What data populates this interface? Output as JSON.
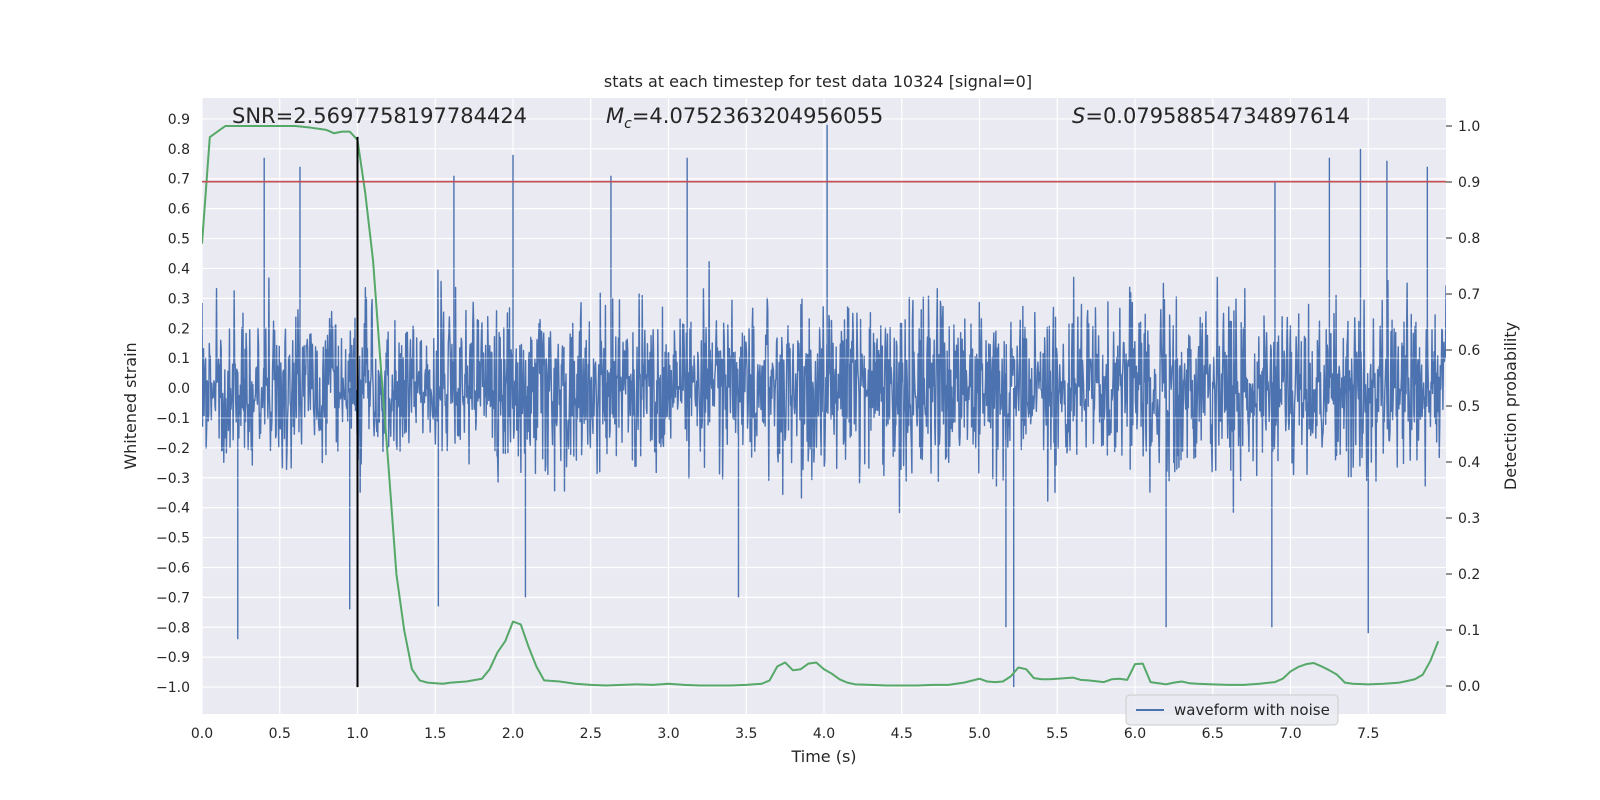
{
  "chart_data": {
    "type": "line",
    "title": "stats at each timestep for test data 10324 [signal=0]",
    "xlabel": "Time (s)",
    "ylabel": "Whitened strain",
    "y2label": "Detection probability",
    "xlim": [
      0.0,
      8.0
    ],
    "ylim": [
      -1.09,
      0.97
    ],
    "y2lim": [
      -0.05,
      1.05
    ],
    "xticks": [
      "0.0",
      "0.5",
      "1.0",
      "1.5",
      "2.0",
      "2.5",
      "3.0",
      "3.5",
      "4.0",
      "4.5",
      "5.0",
      "5.5",
      "6.0",
      "6.5",
      "7.0",
      "7.5"
    ],
    "yticks": [
      "0.9",
      "0.8",
      "0.7",
      "0.6",
      "0.5",
      "0.4",
      "0.3",
      "0.2",
      "0.1",
      "0.0",
      "−0.1",
      "−0.2",
      "−0.3",
      "−0.4",
      "−0.5",
      "−0.6",
      "−0.7",
      "−0.8",
      "−0.9",
      "−1.0"
    ],
    "y2ticks": [
      "1.0",
      "0.9",
      "0.8",
      "0.7",
      "0.6",
      "0.5",
      "0.4",
      "0.3",
      "0.2",
      "0.1",
      "0.0"
    ],
    "grid": true,
    "legend_position": "lower-right",
    "colors": {
      "background": "#eaeaf2",
      "grid": "#ffffff",
      "waveform": "#4c72b0",
      "probability": "#55a868",
      "threshold": "#c44e52",
      "marker": "#000000"
    },
    "annotations": {
      "snr": "SNR=2.5697758197784424",
      "mc_symbol": "M",
      "mc_sub": "c",
      "mc_value": "=4.0752363204956055",
      "s_symbol": "S",
      "s_value": "=0.07958854734897614"
    },
    "series": [
      {
        "name": "waveform with noise",
        "axis": "left",
        "kind": "dense-noise",
        "band_core": [
          -0.45,
          0.42
        ],
        "peaks": [
          [
            0.4,
            0.77
          ],
          [
            0.63,
            0.74
          ],
          [
            1.0,
            0.83
          ],
          [
            1.62,
            0.71
          ],
          [
            2.0,
            0.78
          ],
          [
            2.63,
            0.71
          ],
          [
            3.12,
            0.77
          ],
          [
            4.02,
            0.88
          ],
          [
            6.9,
            0.69
          ],
          [
            7.25,
            0.77
          ],
          [
            7.45,
            0.8
          ],
          [
            7.62,
            0.76
          ],
          [
            7.88,
            0.74
          ]
        ],
        "troughs": [
          [
            0.23,
            -0.84
          ],
          [
            0.95,
            -0.74
          ],
          [
            1.52,
            -0.73
          ],
          [
            2.08,
            -0.7
          ],
          [
            3.45,
            -0.7
          ],
          [
            5.17,
            -0.8
          ],
          [
            5.22,
            -1.0
          ],
          [
            6.2,
            -0.8
          ],
          [
            6.88,
            -0.8
          ],
          [
            7.5,
            -0.82
          ]
        ]
      },
      {
        "name": "detection probability",
        "axis": "right",
        "x": [
          0.0,
          0.05,
          0.1,
          0.15,
          0.2,
          0.3,
          0.4,
          0.5,
          0.6,
          0.7,
          0.8,
          0.85,
          0.9,
          0.95,
          1.0,
          1.05,
          1.1,
          1.15,
          1.2,
          1.25,
          1.3,
          1.35,
          1.4,
          1.45,
          1.5,
          1.55,
          1.6,
          1.7,
          1.8,
          1.85,
          1.9,
          1.95,
          2.0,
          2.05,
          2.1,
          2.15,
          2.2,
          2.3,
          2.4,
          2.5,
          2.6,
          2.7,
          2.8,
          2.9,
          3.0,
          3.1,
          3.2,
          3.3,
          3.4,
          3.5,
          3.6,
          3.65,
          3.7,
          3.75,
          3.8,
          3.85,
          3.9,
          3.95,
          4.0,
          4.05,
          4.1,
          4.15,
          4.2,
          4.3,
          4.4,
          4.5,
          4.6,
          4.7,
          4.8,
          4.9,
          5.0,
          5.05,
          5.1,
          5.15,
          5.2,
          5.25,
          5.3,
          5.35,
          5.4,
          5.45,
          5.5,
          5.6,
          5.65,
          5.7,
          5.8,
          5.85,
          5.9,
          5.95,
          6.0,
          6.05,
          6.1,
          6.15,
          6.2,
          6.25,
          6.3,
          6.35,
          6.4,
          6.5,
          6.6,
          6.7,
          6.8,
          6.9,
          6.95,
          7.0,
          7.05,
          7.1,
          7.15,
          7.2,
          7.25,
          7.3,
          7.35,
          7.4,
          7.5,
          7.6,
          7.7,
          7.75,
          7.8,
          7.85,
          7.9,
          7.95
        ],
        "values": [
          0.79,
          0.98,
          0.99,
          1.0,
          1.0,
          1.0,
          1.0,
          1.0,
          1.0,
          0.997,
          0.993,
          0.987,
          0.99,
          0.99,
          0.975,
          0.88,
          0.76,
          0.57,
          0.39,
          0.2,
          0.1,
          0.03,
          0.01,
          0.006,
          0.005,
          0.004,
          0.006,
          0.008,
          0.013,
          0.03,
          0.06,
          0.08,
          0.115,
          0.11,
          0.07,
          0.035,
          0.01,
          0.008,
          0.004,
          0.002,
          0.001,
          0.002,
          0.003,
          0.002,
          0.004,
          0.002,
          0.001,
          0.001,
          0.001,
          0.002,
          0.004,
          0.01,
          0.035,
          0.042,
          0.028,
          0.03,
          0.04,
          0.042,
          0.03,
          0.022,
          0.012,
          0.006,
          0.003,
          0.002,
          0.001,
          0.001,
          0.001,
          0.002,
          0.002,
          0.006,
          0.013,
          0.008,
          0.007,
          0.008,
          0.017,
          0.033,
          0.03,
          0.014,
          0.012,
          0.012,
          0.013,
          0.015,
          0.011,
          0.01,
          0.007,
          0.012,
          0.013,
          0.011,
          0.039,
          0.04,
          0.007,
          0.005,
          0.003,
          0.006,
          0.008,
          0.005,
          0.004,
          0.003,
          0.002,
          0.002,
          0.004,
          0.007,
          0.013,
          0.026,
          0.034,
          0.039,
          0.041,
          0.035,
          0.028,
          0.02,
          0.006,
          0.004,
          0.003,
          0.004,
          0.006,
          0.009,
          0.012,
          0.02,
          0.045,
          0.08
        ]
      },
      {
        "name": "threshold",
        "axis": "left",
        "kind": "hline",
        "y": 0.69
      },
      {
        "name": "timestep marker",
        "axis": "left",
        "kind": "vline",
        "x": 1.0,
        "y_from": -1.0,
        "y_to": 0.84
      }
    ],
    "legend": [
      "waveform with noise"
    ]
  }
}
